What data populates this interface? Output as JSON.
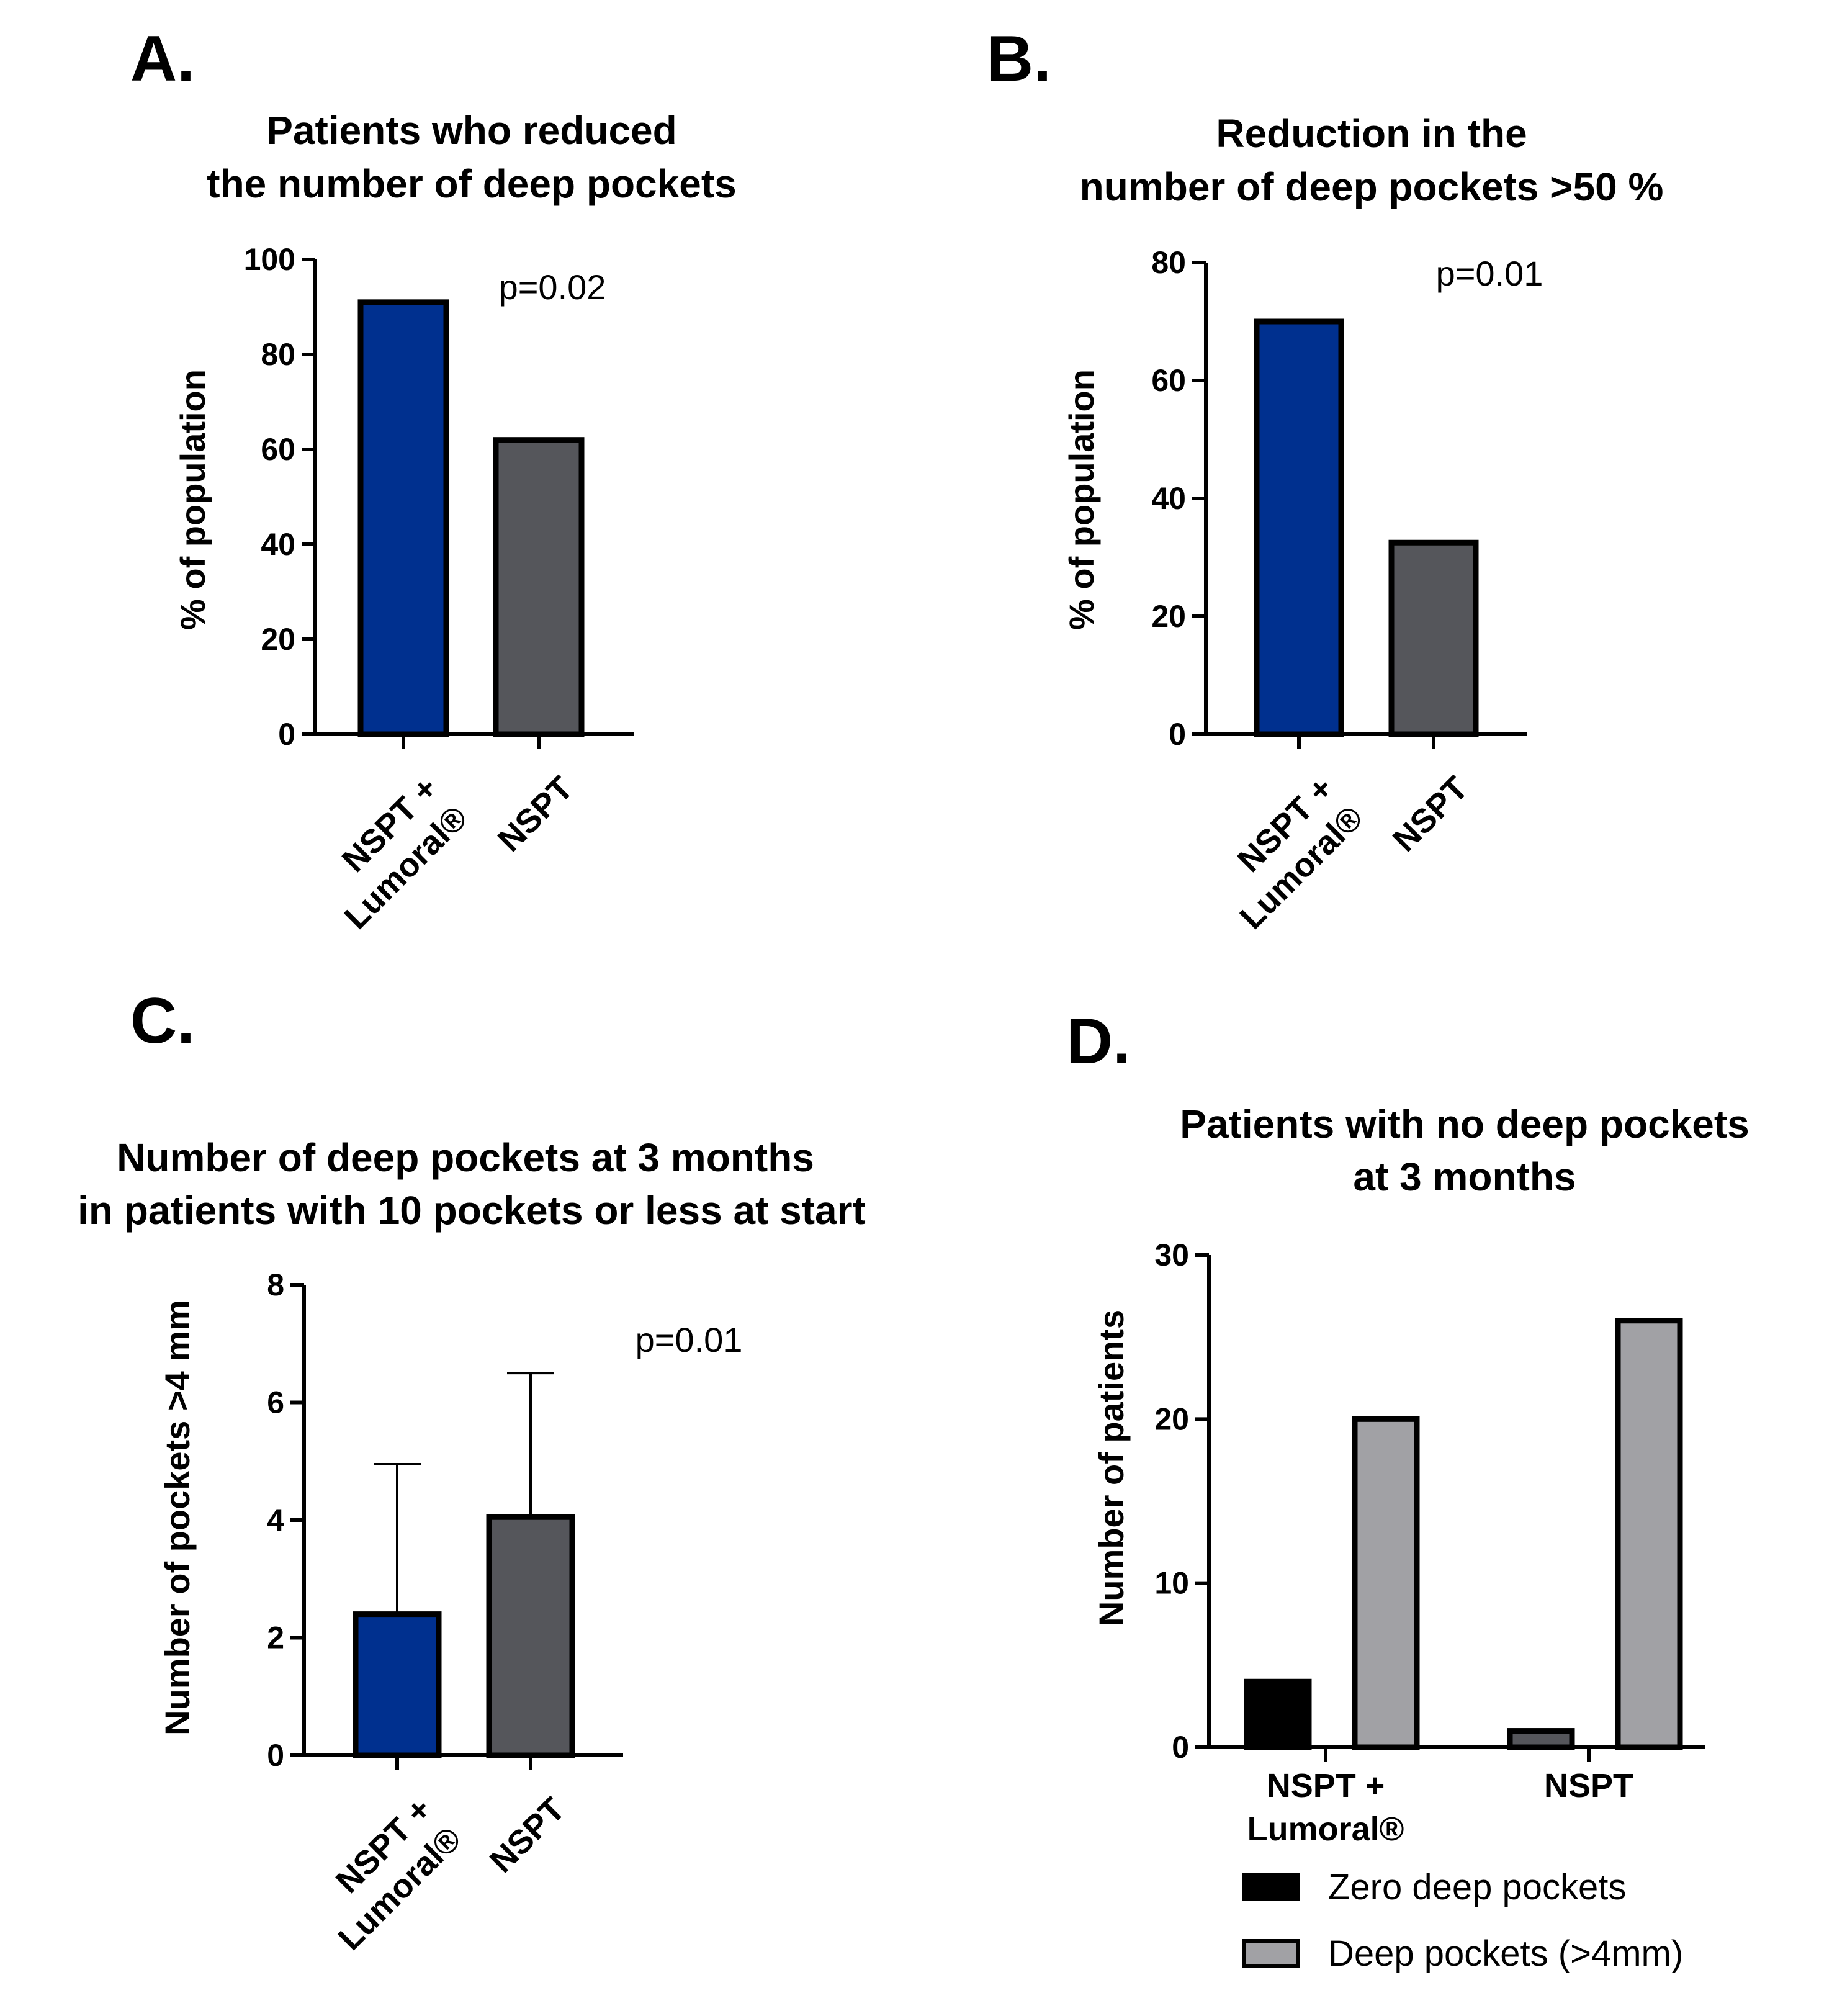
{
  "chart_data": [
    {
      "panel": "A.",
      "type": "bar",
      "title_lines": [
        "Patients who reduced",
        "the number of deep pockets"
      ],
      "ylabel": "% of population",
      "ylim": [
        0,
        100
      ],
      "yticks": [
        "0",
        "20",
        "40",
        "60",
        "80",
        "100"
      ],
      "categories": [
        [
          "NSPT +",
          "Lumoral®"
        ],
        [
          "NSPT"
        ]
      ],
      "values": [
        91,
        62
      ],
      "colors": [
        "#00308f",
        "#55565b"
      ],
      "annotation": "p=0.02"
    },
    {
      "panel": "B.",
      "type": "bar",
      "title_lines": [
        "Reduction in the",
        "number of deep pockets >50 %"
      ],
      "ylabel": "% of population",
      "ylim": [
        0,
        80
      ],
      "yticks": [
        "0",
        "20",
        "40",
        "60",
        "80"
      ],
      "categories": [
        [
          "NSPT +",
          "Lumoral®"
        ],
        [
          "NSPT"
        ]
      ],
      "values": [
        70,
        32.5
      ],
      "colors": [
        "#00308f",
        "#55565b"
      ],
      "annotation": "p=0.01"
    },
    {
      "panel": "C.",
      "type": "bar",
      "title_lines": [
        "Number of deep pockets at 3 months",
        "in patients with 10 pockets or less at start"
      ],
      "ylabel": "Number of pockets >4 mm",
      "ylim": [
        0,
        8
      ],
      "yticks": [
        "0",
        "2",
        "4",
        "6",
        "8"
      ],
      "categories": [
        [
          "NSPT +",
          "Lumoral®"
        ],
        [
          "NSPT"
        ]
      ],
      "values": [
        2.4,
        4.05
      ],
      "error_upper": [
        4.95,
        6.5
      ],
      "colors": [
        "#00308f",
        "#55565b"
      ],
      "annotation": "p=0.01"
    },
    {
      "panel": "D.",
      "type": "bar",
      "title_lines": [
        "Patients with no deep pockets",
        "at 3 months"
      ],
      "ylabel": "Number of patients",
      "ylim": [
        0,
        30
      ],
      "yticks": [
        "0",
        "10",
        "20",
        "30"
      ],
      "categories": [
        [
          "NSPT +",
          "Lumoral®"
        ],
        [
          "NSPT"
        ]
      ],
      "series": [
        {
          "name": "Zero deep pockets",
          "values": [
            4,
            1
          ],
          "colors": [
            "#000000",
            "#55565b"
          ]
        },
        {
          "name": "Deep pockets (>4mm)",
          "values": [
            20,
            26
          ],
          "colors": [
            "#a1a1a5",
            "#a1a1a5"
          ]
        }
      ],
      "legend": "bottom-right"
    }
  ]
}
